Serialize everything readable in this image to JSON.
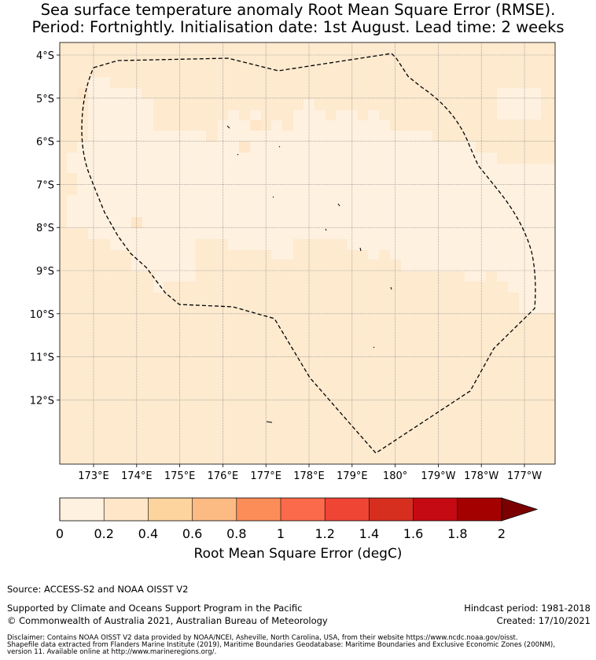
{
  "title": {
    "line1": "Sea surface temperature anomaly Root Mean Square Error (RMSE).",
    "line2": "Period: Fortnightly. Initialisation date: 1st August. Lead time: 2 weeks"
  },
  "map": {
    "lat_labels": [
      "4°S",
      "5°S",
      "6°S",
      "7°S",
      "8°S",
      "9°S",
      "10°S",
      "11°S",
      "12°S"
    ],
    "lon_labels": [
      "173°E",
      "174°E",
      "175°E",
      "176°E",
      "177°E",
      "178°E",
      "179°E",
      "180°",
      "179°W",
      "178°W",
      "177°W"
    ],
    "colors": {
      "rmse_0_0.2": "#fff1e0",
      "rmse_0.2_0.4": "#ffe6c8",
      "background": "#fdeacf",
      "boundary_line": "#000000",
      "gridline": "#808080"
    }
  },
  "colorbar": {
    "ticks": [
      "0",
      "0.2",
      "0.4",
      "0.6",
      "0.8",
      "1",
      "1.2",
      "1.4",
      "1.6",
      "1.8",
      "2"
    ],
    "colors": [
      "#fff1e0",
      "#ffe6c8",
      "#fdd49e",
      "#fdbb84",
      "#fc8d59",
      "#fb6a4a",
      "#ef4535",
      "#d62f1f",
      "#c50a14",
      "#a50000",
      "#7b0000"
    ],
    "label": "Root Mean Square Error (degC)"
  },
  "footer": {
    "source": "Source: ACCESS-S2 and NOAA OISST V2",
    "supported": "Supported by Climate and Oceans Support Program in the Pacific",
    "copyright": "© Commonwealth of Australia 2021, Australian Bureau of Meteorology",
    "hindcast": "Hindcast period: 1981-2018",
    "created": "Created: 17/10/2021",
    "disclaimer1": "Disclaimer: Contains NOAA OISST V2 data provided by NOAA/NCEI, Asheville, North Carolina, USA, from their website https://www.ncdc.noaa.gov/oisst.",
    "disclaimer2": "Shapefile data extracted from Flanders Marine Institute (2019), Maritime Boundaries Geodatabase: Maritime Boundaries and Exclusive Economic Zones (200NM),",
    "disclaimer3": "version 11. Available online at http://www.marineregions.org/."
  }
}
